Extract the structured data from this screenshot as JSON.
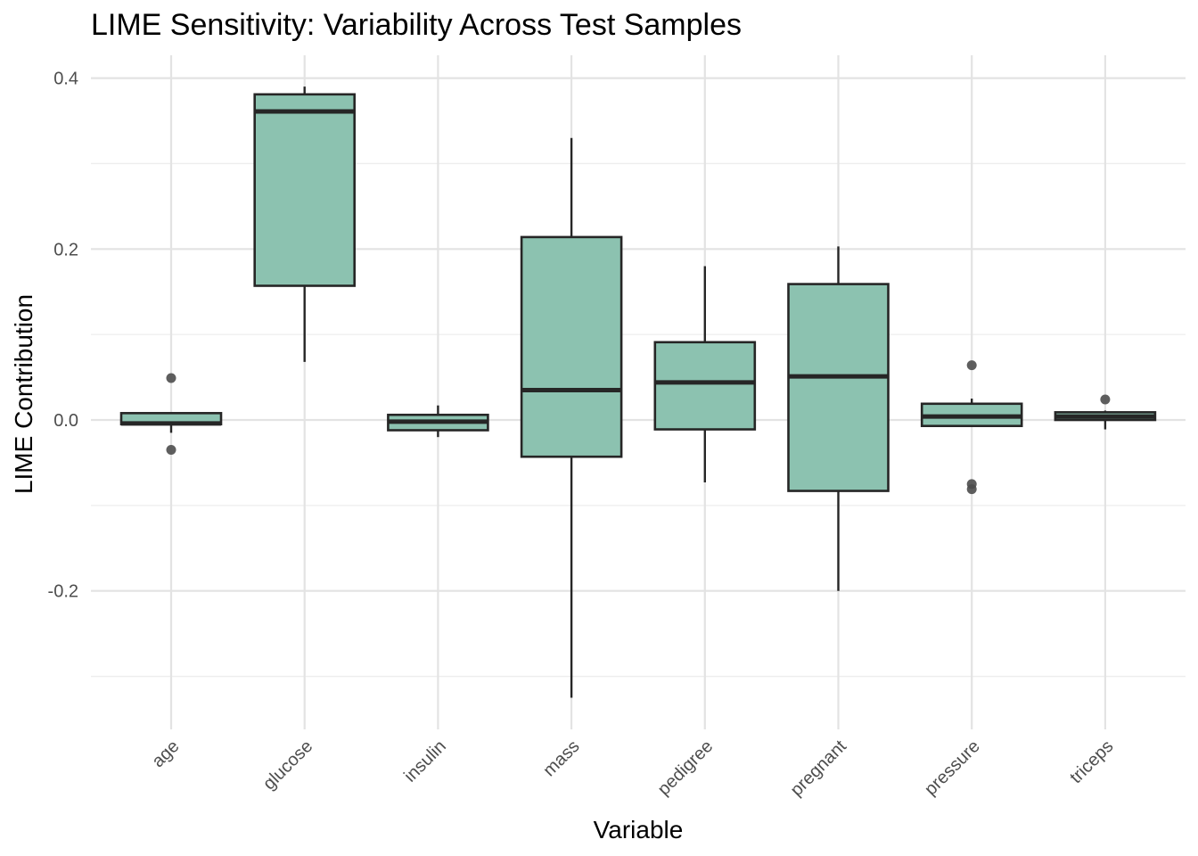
{
  "chart_data": {
    "type": "boxplot",
    "title": "LIME Sensitivity: Variability Across Test Samples",
    "xlabel": "Variable",
    "ylabel": "LIME Contribution",
    "ylim": [
      -0.35,
      0.4
    ],
    "yticks": [
      0.4,
      0.2,
      0.0,
      -0.2
    ],
    "ytick_labels": [
      "0.4",
      "0.2",
      "0.0",
      "-0.2"
    ],
    "grid": true,
    "box_fill": "#8cc2b0",
    "box_stroke": "#262626",
    "outlier_color": "#4d4d4d",
    "categories": [
      "age",
      "glucose",
      "insulin",
      "mass",
      "pedigree",
      "pregnant",
      "pressure",
      "triceps"
    ],
    "boxes": [
      {
        "category": "age",
        "whisker_low": -0.015,
        "q1": -0.005,
        "median": -0.004,
        "q3": 0.008,
        "whisker_high": 0.008,
        "outliers": [
          0.049,
          -0.035
        ]
      },
      {
        "category": "glucose",
        "whisker_low": 0.068,
        "q1": 0.157,
        "median": 0.361,
        "q3": 0.381,
        "whisker_high": 0.39,
        "outliers": []
      },
      {
        "category": "insulin",
        "whisker_low": -0.02,
        "q1": -0.012,
        "median": -0.002,
        "q3": 0.006,
        "whisker_high": 0.017,
        "outliers": []
      },
      {
        "category": "mass",
        "whisker_low": -0.325,
        "q1": -0.043,
        "median": 0.035,
        "q3": 0.214,
        "whisker_high": 0.33,
        "outliers": []
      },
      {
        "category": "pedigree",
        "whisker_low": -0.073,
        "q1": -0.011,
        "median": 0.044,
        "q3": 0.091,
        "whisker_high": 0.18,
        "outliers": []
      },
      {
        "category": "pregnant",
        "whisker_low": -0.2,
        "q1": -0.083,
        "median": 0.051,
        "q3": 0.159,
        "whisker_high": 0.203,
        "outliers": []
      },
      {
        "category": "pressure",
        "whisker_low": -0.008,
        "q1": -0.007,
        "median": 0.004,
        "q3": 0.019,
        "whisker_high": 0.025,
        "outliers": [
          0.064,
          -0.075,
          -0.081
        ]
      },
      {
        "category": "triceps",
        "whisker_low": -0.011,
        "q1": 0.0,
        "median": 0.004,
        "q3": 0.009,
        "whisker_high": 0.011,
        "outliers": [
          0.024
        ]
      }
    ]
  }
}
